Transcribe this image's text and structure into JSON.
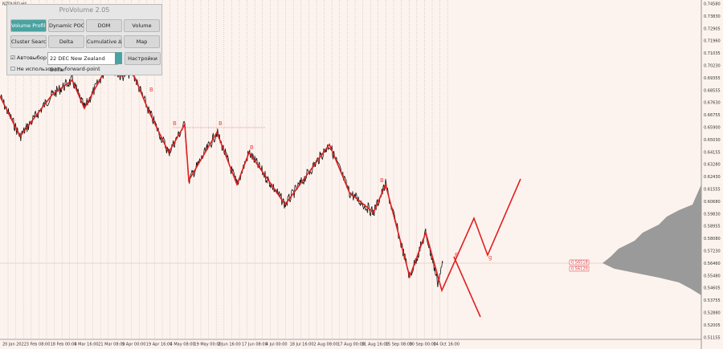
{
  "window": {
    "symbol": "NZDUSD,H4"
  },
  "panel": {
    "title": "ProVolume 2.05",
    "buttons": [
      [
        "Volume Profile",
        "Dynamic POC",
        "DOM",
        "Volume"
      ],
      [
        "Cluster Search",
        "Delta",
        "Cumulative Δ",
        "Map"
      ]
    ],
    "auto_select": "Автовыбор",
    "instrument": "22 DEC New Zealand Dollar",
    "settings": "Настройки",
    "forward_point": "Не использовать forward-point"
  },
  "price_axis": [
    "0.74580",
    "0.73830",
    "0.72905",
    "0.71960",
    "0.71035",
    "0.70230",
    "0.69355",
    "0.68555",
    "0.67630",
    "0.66755",
    "0.65900",
    "0.65030",
    "0.64155",
    "0.63280",
    "0.62430",
    "0.61555",
    "0.60680",
    "0.59830",
    "0.58955",
    "0.58080",
    "0.57230",
    "0.56460",
    "0.55480",
    "0.54605",
    "0.53755",
    "0.52880",
    "0.52005",
    "0.51155"
  ],
  "price_tags": [
    "0.56518",
    "0.56120"
  ],
  "wave_labels": [
    "B",
    "B",
    "B",
    "B",
    "B",
    "B",
    "g"
  ],
  "time_axis": [
    "20 Jan 2022",
    "3 Feb 08:00",
    "18 Feb 00:00",
    "4 Mar 16:00",
    "21 Mar 08:00",
    "5 Apr 00:00",
    "19 Apr 16:00",
    "4 May 08:00",
    "19 May 00:00",
    "2 Jun 16:00",
    "17 Jun 08:00",
    "4 Jul 00:00",
    "18 Jul 16:00",
    "2 Aug 08:00",
    "17 Aug 00:00",
    "31 Aug 16:00",
    "15 Sep 08:00",
    "30 Sep 00:00",
    "14 Oct 16:00"
  ]
}
